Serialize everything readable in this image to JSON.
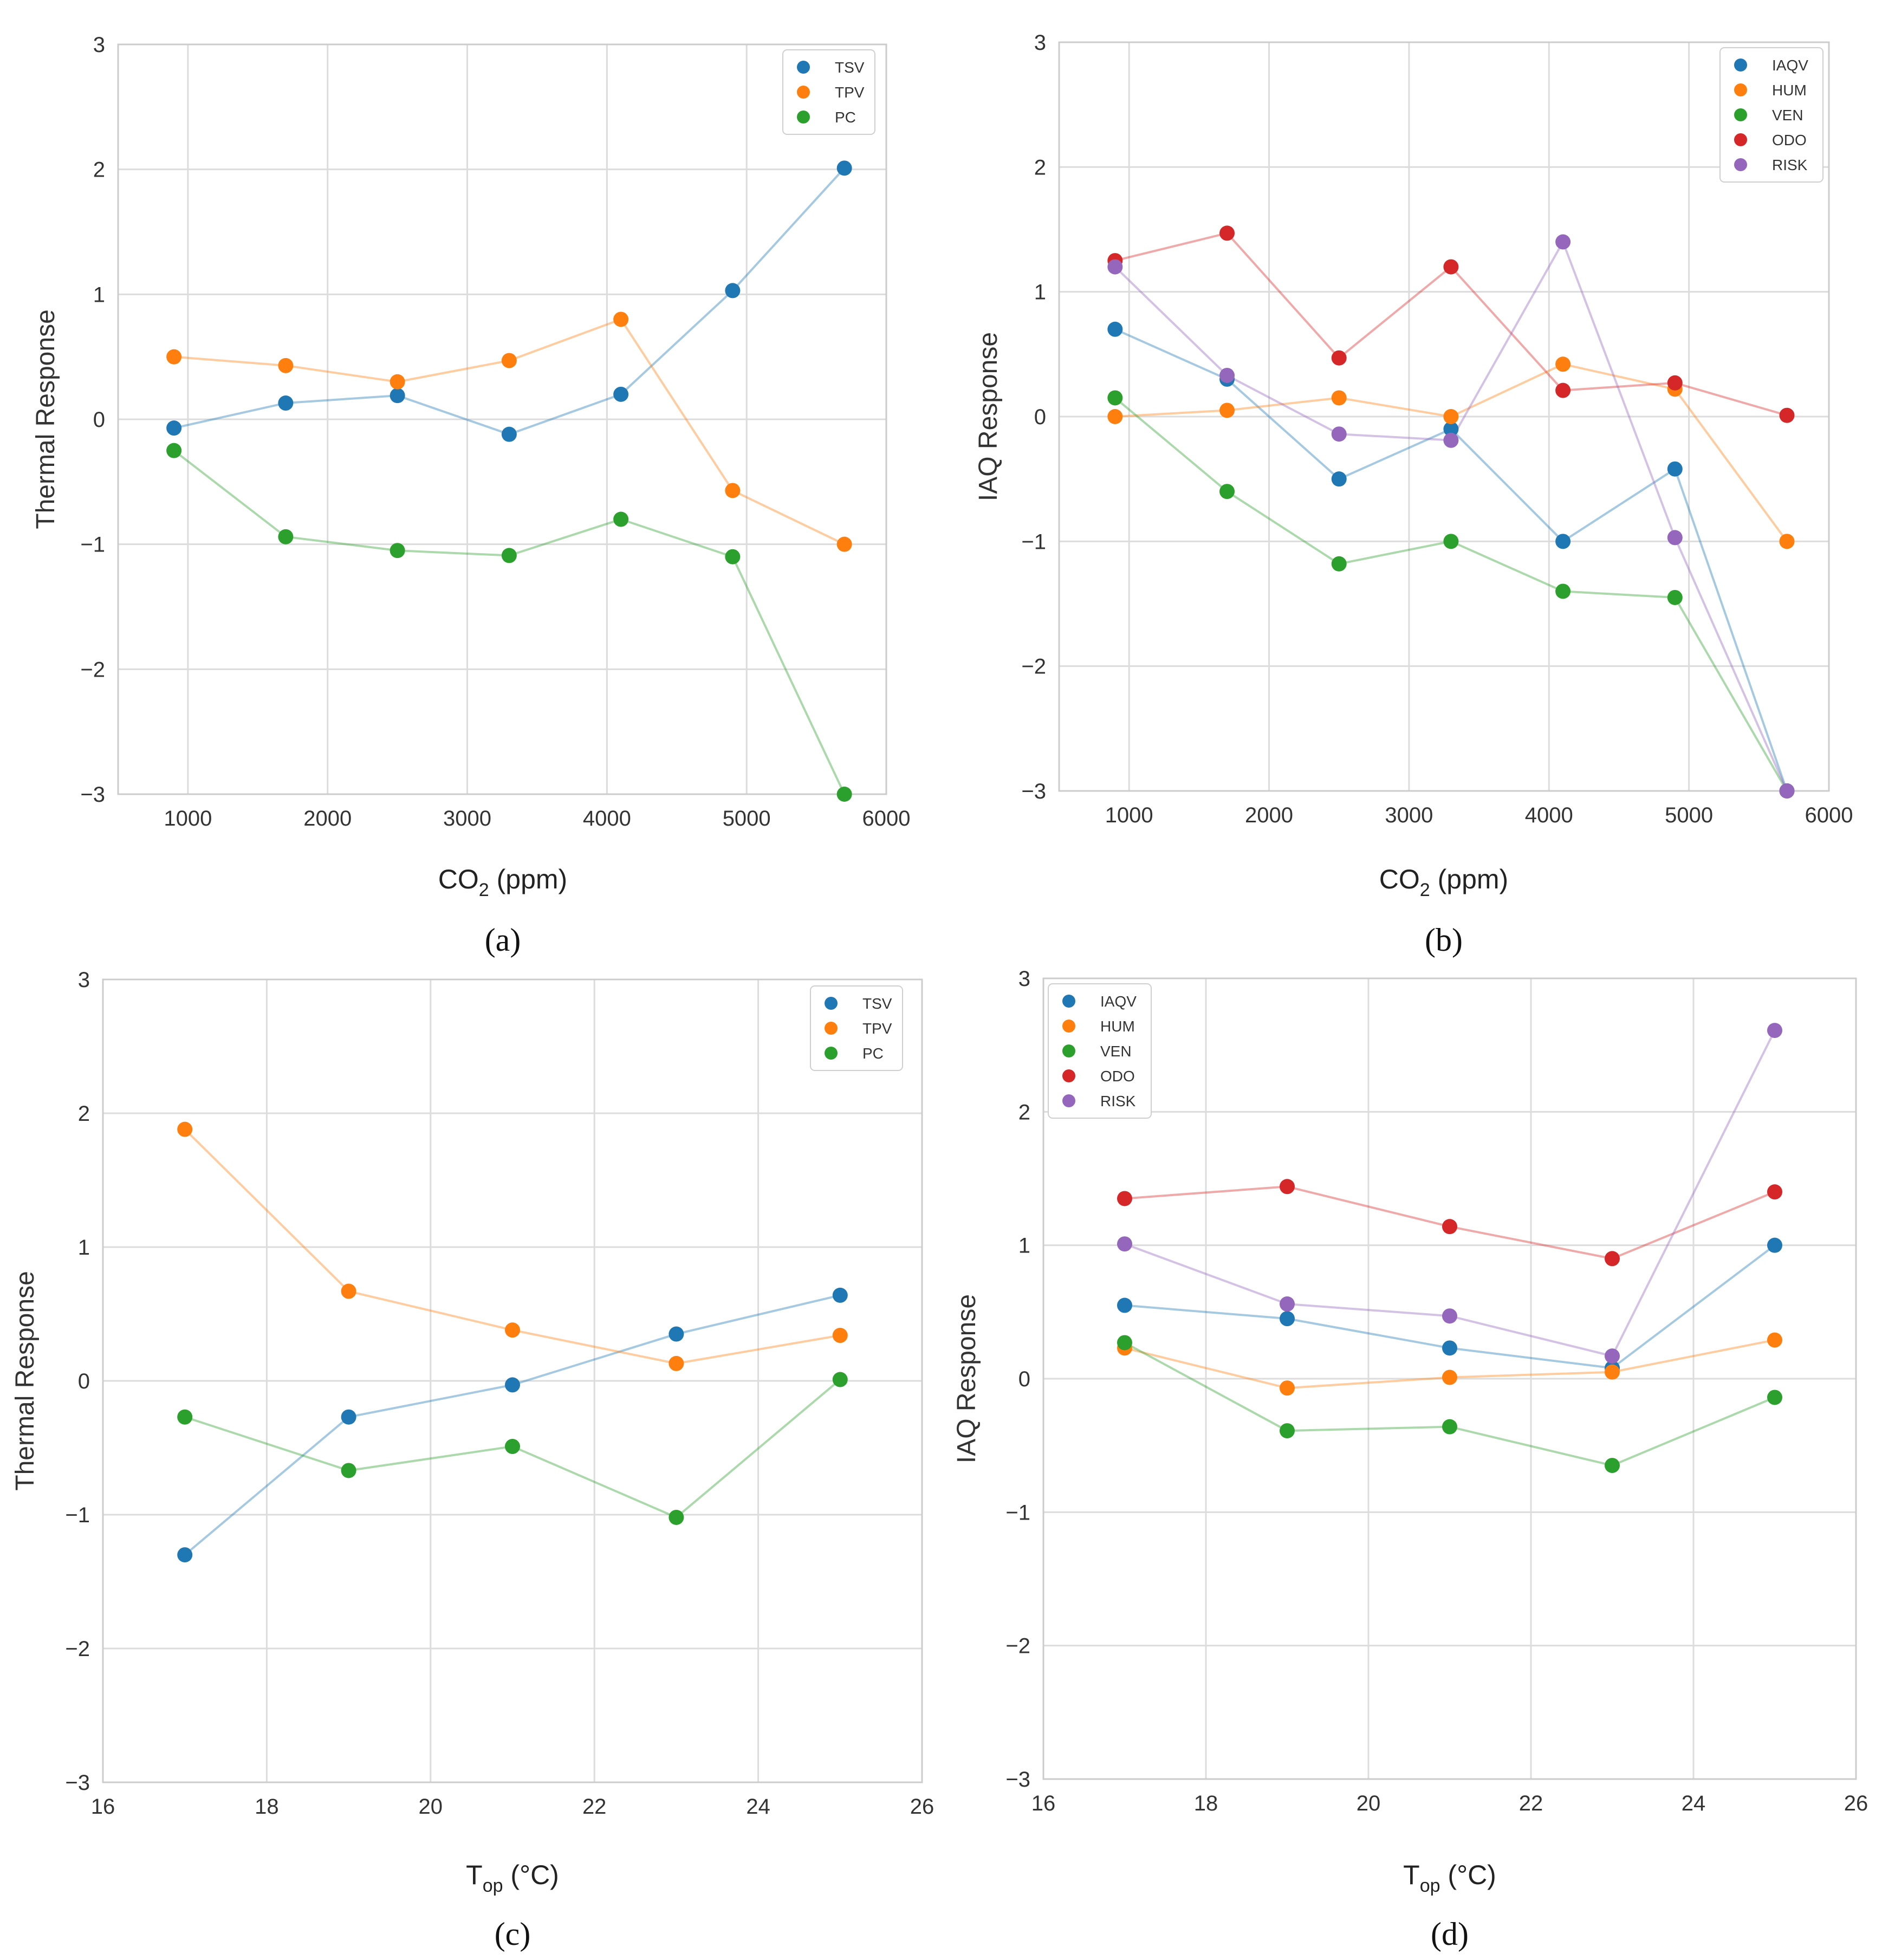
{
  "colors": {
    "blue": "#1f77b4",
    "orange": "#ff7f0e",
    "green": "#2ca02c",
    "red": "#d62728",
    "purple": "#9467bd",
    "grid": "#dcdcdc",
    "frame": "#cccccc"
  },
  "chart_data": [
    {
      "id": "a",
      "type": "line",
      "panel_label": "(a)",
      "xlabel": {
        "main": "CO",
        "sub": "2",
        "rest": " (ppm)"
      },
      "ylabel": "Thermal Response",
      "xlim": [
        500,
        6000
      ],
      "ylim": [
        -3,
        3
      ],
      "xticks": [
        1000,
        2000,
        3000,
        4000,
        5000,
        6000
      ],
      "yticks": [
        -3,
        -2,
        -1,
        0,
        1,
        2,
        3
      ],
      "ytick_labels": [
        "−3",
        "−2",
        "−1",
        "0",
        "1",
        "2",
        "3"
      ],
      "legend_position": "top-right",
      "x": [
        900,
        1700,
        2500,
        3300,
        4100,
        4900,
        5700
      ],
      "series": [
        {
          "name": "TSV",
          "color": "blue",
          "values": [
            -0.07,
            0.13,
            0.19,
            -0.12,
            0.2,
            1.03,
            2.01
          ]
        },
        {
          "name": "TPV",
          "color": "orange",
          "values": [
            0.5,
            0.43,
            0.3,
            0.47,
            0.8,
            -0.57,
            -1.0
          ]
        },
        {
          "name": "PC",
          "color": "green",
          "values": [
            -0.25,
            -0.94,
            -1.05,
            -1.09,
            -0.8,
            -1.1,
            -3.0
          ]
        }
      ]
    },
    {
      "id": "b",
      "type": "line",
      "panel_label": "(b)",
      "xlabel": {
        "main": "CO",
        "sub": "2",
        "rest": " (ppm)"
      },
      "ylabel": "IAQ Response",
      "xlim": [
        500,
        6000
      ],
      "ylim": [
        -3,
        3
      ],
      "xticks": [
        1000,
        2000,
        3000,
        4000,
        5000,
        6000
      ],
      "yticks": [
        -3,
        -2,
        -1,
        0,
        1,
        2,
        3
      ],
      "ytick_labels": [
        "−3",
        "−2",
        "−1",
        "0",
        "1",
        "2",
        "3"
      ],
      "legend_position": "top-right",
      "x": [
        900,
        1700,
        2500,
        3300,
        4100,
        4900,
        5700
      ],
      "series": [
        {
          "name": "IAQV",
          "color": "blue",
          "values": [
            0.7,
            0.3,
            -0.5,
            -0.1,
            -1.0,
            -0.42,
            -3.0
          ]
        },
        {
          "name": "HUM",
          "color": "orange",
          "values": [
            0.0,
            0.05,
            0.15,
            0.0,
            0.42,
            0.22,
            -1.0
          ]
        },
        {
          "name": "VEN",
          "color": "green",
          "values": [
            0.15,
            -0.6,
            -1.18,
            -1.0,
            -1.4,
            -1.45,
            -3.0
          ]
        },
        {
          "name": "ODO",
          "color": "red",
          "values": [
            1.25,
            1.47,
            0.47,
            1.2,
            0.21,
            0.27,
            0.01
          ]
        },
        {
          "name": "RISK",
          "color": "purple",
          "values": [
            1.2,
            0.33,
            -0.14,
            -0.19,
            1.4,
            -0.97,
            -3.0
          ]
        }
      ]
    },
    {
      "id": "c",
      "type": "line",
      "panel_label": "(c)",
      "xlabel": {
        "main": "T",
        "sub": "op",
        "rest": " (°C)"
      },
      "ylabel": "Thermal Response",
      "xlim": [
        16,
        26
      ],
      "ylim": [
        -3,
        3
      ],
      "xticks": [
        16,
        18,
        20,
        22,
        24,
        26
      ],
      "yticks": [
        -3,
        -2,
        -1,
        0,
        1,
        2,
        3
      ],
      "ytick_labels": [
        "−3",
        "−2",
        "−1",
        "0",
        "1",
        "2",
        "3"
      ],
      "legend_position": "top-right",
      "x": [
        17,
        19,
        21,
        23,
        25
      ],
      "series": [
        {
          "name": "TSV",
          "color": "blue",
          "values": [
            -1.3,
            -0.27,
            -0.03,
            0.35,
            0.64
          ]
        },
        {
          "name": "TPV",
          "color": "orange",
          "values": [
            1.88,
            0.67,
            0.38,
            0.13,
            0.34
          ]
        },
        {
          "name": "PC",
          "color": "green",
          "values": [
            -0.27,
            -0.67,
            -0.49,
            -1.02,
            0.01
          ]
        }
      ]
    },
    {
      "id": "d",
      "type": "line",
      "panel_label": "(d)",
      "xlabel": {
        "main": "T",
        "sub": "op",
        "rest": " (°C)"
      },
      "ylabel": "IAQ Response",
      "xlim": [
        16,
        26
      ],
      "ylim": [
        -3,
        3
      ],
      "xticks": [
        16,
        18,
        20,
        22,
        24,
        26
      ],
      "yticks": [
        -3,
        -2,
        -1,
        0,
        1,
        2,
        3
      ],
      "ytick_labels": [
        "−3",
        "−2",
        "−1",
        "0",
        "1",
        "2",
        "3"
      ],
      "legend_position": "top-left",
      "x": [
        17,
        19,
        21,
        23,
        25
      ],
      "series": [
        {
          "name": "IAQV",
          "color": "blue",
          "values": [
            0.55,
            0.45,
            0.23,
            0.08,
            1.0
          ]
        },
        {
          "name": "HUM",
          "color": "orange",
          "values": [
            0.23,
            -0.07,
            0.01,
            0.05,
            0.29
          ]
        },
        {
          "name": "VEN",
          "color": "green",
          "values": [
            0.27,
            -0.39,
            -0.36,
            -0.65,
            -0.14
          ]
        },
        {
          "name": "ODO",
          "color": "red",
          "values": [
            1.35,
            1.44,
            1.14,
            0.9,
            1.4
          ]
        },
        {
          "name": "RISK",
          "color": "purple",
          "values": [
            1.01,
            0.56,
            0.47,
            0.17,
            2.61
          ]
        }
      ]
    }
  ]
}
